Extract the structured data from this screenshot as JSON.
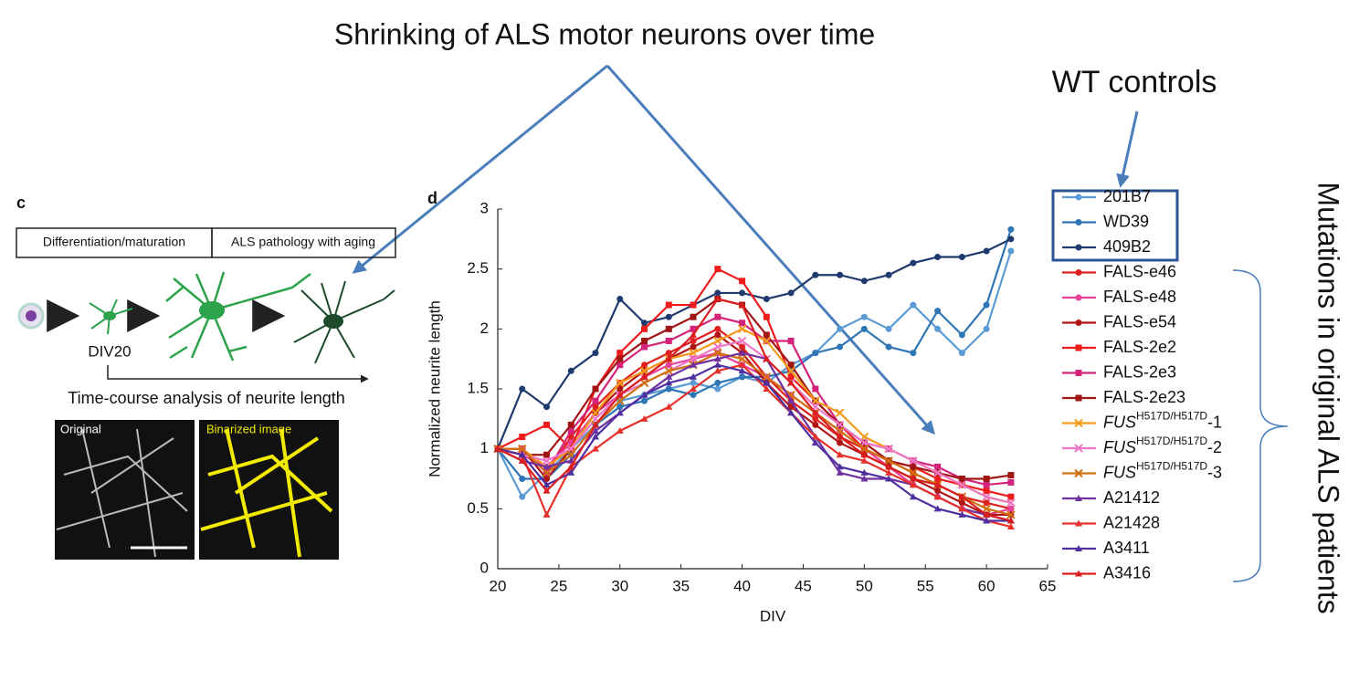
{
  "chart_data": {
    "type": "line",
    "annotations": {
      "headline": "Shrinking of ALS motor neurons over time",
      "wt": "WT controls",
      "patients": "Mutations in original ALS patients"
    },
    "panel": "d",
    "xlabel": "DIV",
    "ylabel": "Normalized neurite length",
    "xlim": [
      20,
      65
    ],
    "xticks": [
      20,
      25,
      30,
      35,
      40,
      45,
      50,
      55,
      60,
      65
    ],
    "ylim": [
      0,
      3
    ],
    "yticks": [
      0,
      0.5,
      1,
      1.5,
      2,
      2.5,
      3
    ],
    "x": [
      20,
      22,
      24,
      26,
      28,
      30,
      32,
      34,
      36,
      38,
      40,
      42,
      44,
      46,
      48,
      50,
      52,
      54,
      56,
      58,
      60,
      62
    ],
    "series": [
      {
        "name": "201B7",
        "color": "#5b9bd5",
        "marker": "circle",
        "values": [
          1.0,
          0.6,
          0.8,
          1.0,
          1.2,
          1.4,
          1.45,
          1.5,
          1.55,
          1.5,
          1.6,
          1.55,
          1.7,
          1.8,
          2.0,
          2.1,
          2.0,
          2.2,
          2.0,
          1.8,
          2.0,
          2.65
        ]
      },
      {
        "name": "WD39",
        "color": "#2e75b6",
        "marker": "circle",
        "values": [
          1.0,
          0.75,
          0.75,
          0.95,
          1.2,
          1.35,
          1.4,
          1.5,
          1.45,
          1.55,
          1.6,
          1.6,
          1.65,
          1.8,
          1.85,
          2.0,
          1.85,
          1.8,
          2.15,
          1.95,
          2.2,
          2.83
        ]
      },
      {
        "name": "409B2",
        "color": "#1f3a6e",
        "marker": "circle",
        "values": [
          1.0,
          1.5,
          1.35,
          1.65,
          1.8,
          2.25,
          2.05,
          2.1,
          2.2,
          2.3,
          2.3,
          2.25,
          2.3,
          2.45,
          2.45,
          2.4,
          2.45,
          2.55,
          2.6,
          2.6,
          2.65,
          2.75
        ]
      },
      {
        "name": "FALS-e46",
        "color": "#e0201f",
        "marker": "circle",
        "values": [
          1.0,
          1.0,
          0.8,
          1.1,
          1.35,
          1.55,
          1.7,
          1.8,
          1.9,
          2.0,
          1.85,
          1.6,
          1.4,
          1.25,
          1.1,
          1.0,
          0.9,
          0.8,
          0.7,
          0.6,
          0.55,
          0.5
        ]
      },
      {
        "name": "FALS-e48",
        "color": "#e8409a",
        "marker": "circle",
        "values": [
          1.0,
          0.95,
          0.85,
          1.05,
          1.3,
          1.45,
          1.6,
          1.7,
          1.75,
          1.8,
          1.7,
          1.6,
          1.45,
          1.3,
          1.15,
          1.0,
          0.85,
          0.7,
          0.6,
          0.5,
          0.45,
          0.5
        ]
      },
      {
        "name": "FALS-e54",
        "color": "#b01515",
        "marker": "circle",
        "values": [
          1.0,
          1.0,
          0.75,
          1.0,
          1.3,
          1.5,
          1.65,
          1.75,
          1.85,
          1.95,
          1.8,
          1.55,
          1.35,
          1.2,
          1.05,
          0.95,
          0.85,
          0.75,
          0.65,
          0.55,
          0.45,
          0.45
        ]
      },
      {
        "name": "FALS-2e2",
        "color": "#ee1c1c",
        "marker": "square",
        "values": [
          1.0,
          1.1,
          1.2,
          1.0,
          1.5,
          1.8,
          2.0,
          2.2,
          2.2,
          2.5,
          2.4,
          2.1,
          1.6,
          1.4,
          1.2,
          1.0,
          0.9,
          0.85,
          0.75,
          0.7,
          0.65,
          0.6
        ]
      },
      {
        "name": "FALS-2e3",
        "color": "#d4237a",
        "marker": "square",
        "values": [
          1.0,
          1.0,
          0.8,
          1.15,
          1.4,
          1.7,
          1.85,
          1.9,
          2.0,
          2.1,
          2.05,
          1.9,
          1.9,
          1.5,
          1.2,
          1.05,
          1.0,
          0.9,
          0.85,
          0.75,
          0.7,
          0.72
        ]
      },
      {
        "name": "FALS-2e23",
        "color": "#a11515",
        "marker": "square",
        "values": [
          1.0,
          0.95,
          0.95,
          1.2,
          1.5,
          1.75,
          1.9,
          2.0,
          2.1,
          2.25,
          2.2,
          1.95,
          1.7,
          1.4,
          1.2,
          1.05,
          0.9,
          0.85,
          0.8,
          0.75,
          0.75,
          0.78
        ]
      },
      {
        "name": [
          "FUS",
          "H517D/H517D",
          "-1"
        ],
        "color": "#f59a1b",
        "marker": "x",
        "values": [
          1.0,
          1.0,
          0.85,
          1.0,
          1.3,
          1.55,
          1.65,
          1.75,
          1.8,
          1.9,
          2.0,
          1.9,
          1.65,
          1.4,
          1.3,
          1.1,
          1.0,
          0.9,
          0.8,
          0.7,
          0.6,
          0.55
        ]
      },
      {
        "name": [
          "FUS",
          "H517D/H517D",
          "-2"
        ],
        "color": "#f077c8",
        "marker": "x",
        "values": [
          1.0,
          0.95,
          0.9,
          1.0,
          1.25,
          1.45,
          1.55,
          1.65,
          1.75,
          1.85,
          1.9,
          1.75,
          1.55,
          1.35,
          1.2,
          1.05,
          1.0,
          0.9,
          0.8,
          0.7,
          0.6,
          0.55
        ]
      },
      {
        "name": [
          "FUS",
          "H517D/H517D",
          "-3"
        ],
        "color": "#d07010",
        "marker": "x",
        "values": [
          1.0,
          1.0,
          0.8,
          0.95,
          1.2,
          1.4,
          1.55,
          1.65,
          1.7,
          1.8,
          1.75,
          1.6,
          1.45,
          1.3,
          1.15,
          1.0,
          0.9,
          0.8,
          0.7,
          0.6,
          0.5,
          0.45
        ]
      },
      {
        "name": "A21412",
        "color": "#7030a0",
        "marker": "triangle",
        "values": [
          1.0,
          0.9,
          0.85,
          0.9,
          1.15,
          1.3,
          1.45,
          1.6,
          1.7,
          1.75,
          1.8,
          1.75,
          1.4,
          1.1,
          0.8,
          0.75,
          0.75,
          0.7,
          0.6,
          0.5,
          0.45,
          0.4
        ]
      },
      {
        "name": "A21428",
        "color": "#e8302a",
        "marker": "triangle",
        "values": [
          1.0,
          0.95,
          0.45,
          0.85,
          1.0,
          1.15,
          1.25,
          1.35,
          1.5,
          1.65,
          1.7,
          1.5,
          1.3,
          1.1,
          0.95,
          0.9,
          0.8,
          0.7,
          0.6,
          0.5,
          0.4,
          0.35
        ]
      },
      {
        "name": "A3411",
        "color": "#5030a0",
        "marker": "triangle",
        "values": [
          1.0,
          0.95,
          0.7,
          0.8,
          1.1,
          1.3,
          1.45,
          1.55,
          1.6,
          1.7,
          1.65,
          1.55,
          1.3,
          1.05,
          0.85,
          0.8,
          0.75,
          0.6,
          0.5,
          0.45,
          0.4,
          0.4
        ]
      },
      {
        "name": "A3416",
        "color": "#d81e1e",
        "marker": "triangle",
        "values": [
          1.0,
          0.9,
          0.65,
          0.85,
          1.2,
          1.45,
          1.6,
          1.75,
          1.95,
          2.25,
          2.2,
          1.75,
          1.55,
          1.3,
          1.1,
          0.95,
          0.85,
          0.75,
          0.7,
          0.6,
          0.45,
          0.4
        ]
      }
    ]
  },
  "panel_c": {
    "label": "c",
    "stage1": "Differentiation/maturation",
    "stage2": "ALS pathology with aging",
    "day": "DIV20",
    "analysis": "Time-course analysis of neurite length",
    "image1": "Original",
    "image2": "Binarized image"
  }
}
